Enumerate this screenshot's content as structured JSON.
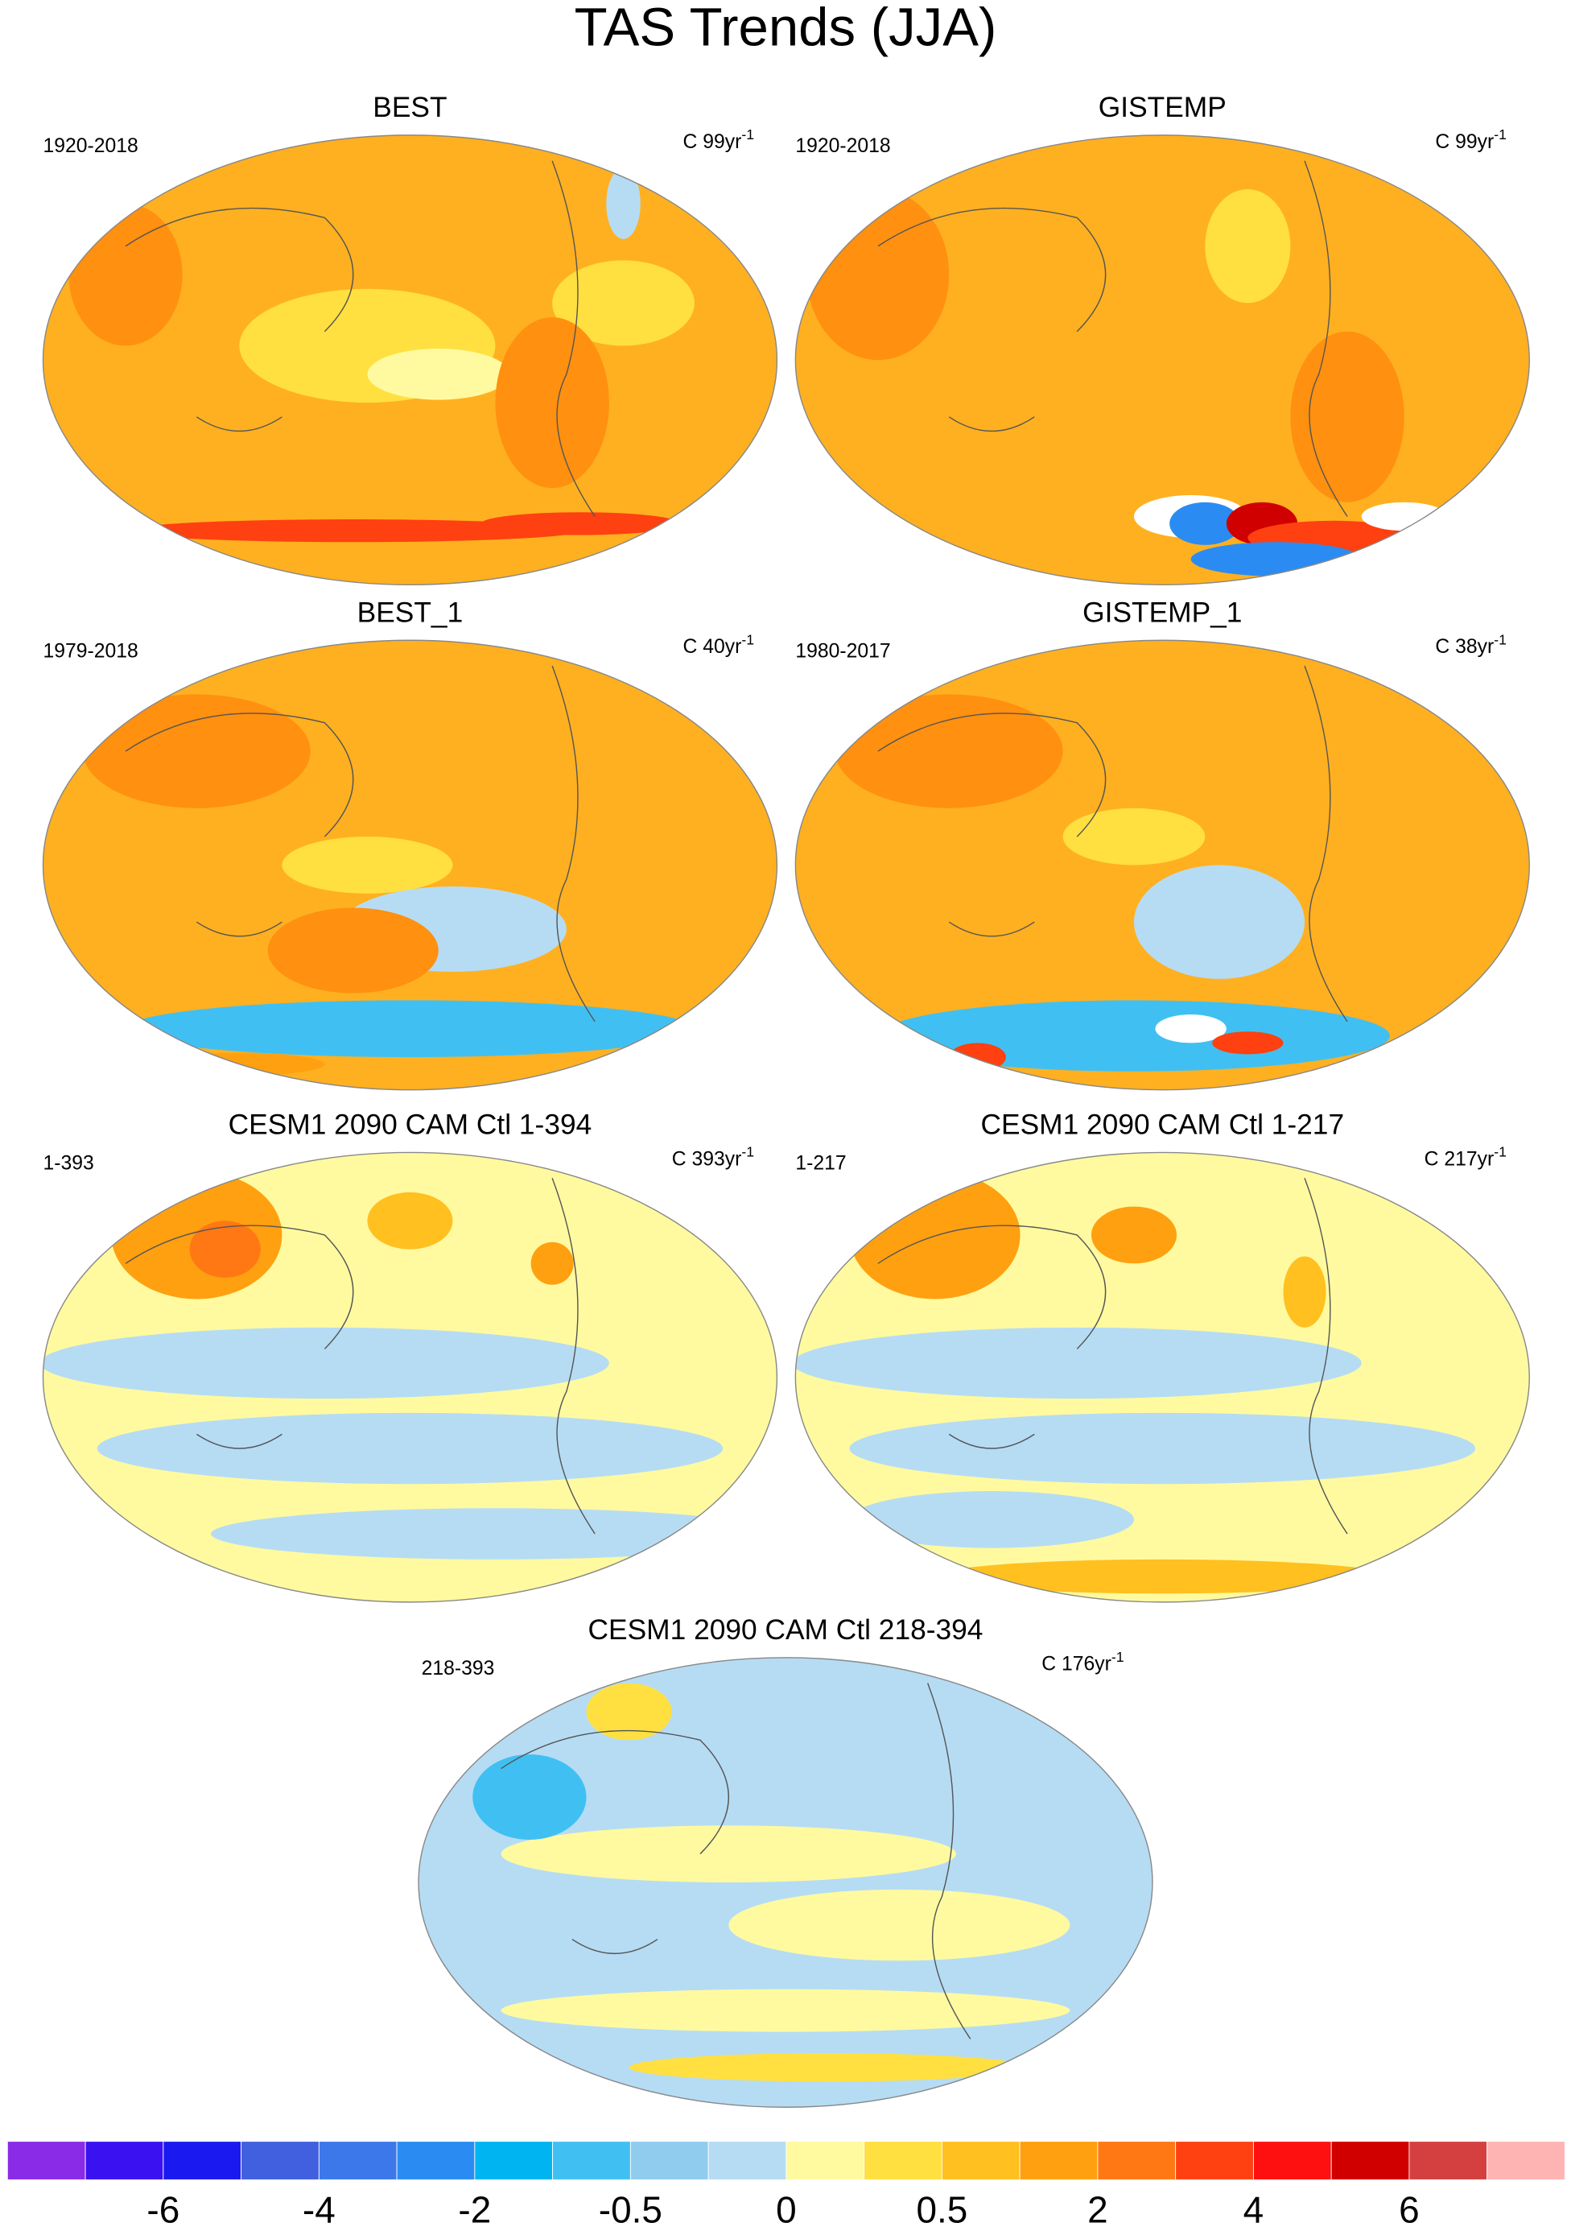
{
  "title": "TAS Trends (JJA)",
  "panels": [
    {
      "title": "BEST",
      "left": "1920-2018",
      "right": "C 99yr",
      "exponent": "-1"
    },
    {
      "title": "GISTEMP",
      "left": "1920-2018",
      "right": "C 99yr",
      "exponent": "-1"
    },
    {
      "title": "BEST_1",
      "left": "1979-2018",
      "right": "C 40yr",
      "exponent": "-1"
    },
    {
      "title": "GISTEMP_1",
      "left": "1980-2017",
      "right": "C 38yr",
      "exponent": "-1"
    },
    {
      "title": "CESM1 2090 CAM Ctl 1-394",
      "left": "1-393",
      "right": "C 393yr",
      "exponent": "-1"
    },
    {
      "title": "CESM1 2090 CAM Ctl 1-217",
      "left": "1-217",
      "right": "C 217yr",
      "exponent": "-1"
    },
    {
      "title": "CESM1 2090 CAM Ctl 218-394",
      "left": "218-393",
      "right": "C 176yr",
      "exponent": "-1"
    }
  ],
  "colorbar": {
    "colors": [
      "#8a2be8",
      "#3a12f2",
      "#1a1af0",
      "#4060e0",
      "#3c78ea",
      "#2a8cf2",
      "#00b4f2",
      "#40c0f2",
      "#90ccee",
      "#b6dcf4",
      "#fffaa0",
      "#ffe040",
      "#ffc020",
      "#ffa010",
      "#ff7814",
      "#ff4010",
      "#ff1010",
      "#d00000",
      "#d44040",
      "#ffb4b4"
    ],
    "labels": [
      "-6",
      "-4",
      "-2",
      "-0.5",
      "0",
      "0.5",
      "2",
      "4",
      "6"
    ]
  }
}
